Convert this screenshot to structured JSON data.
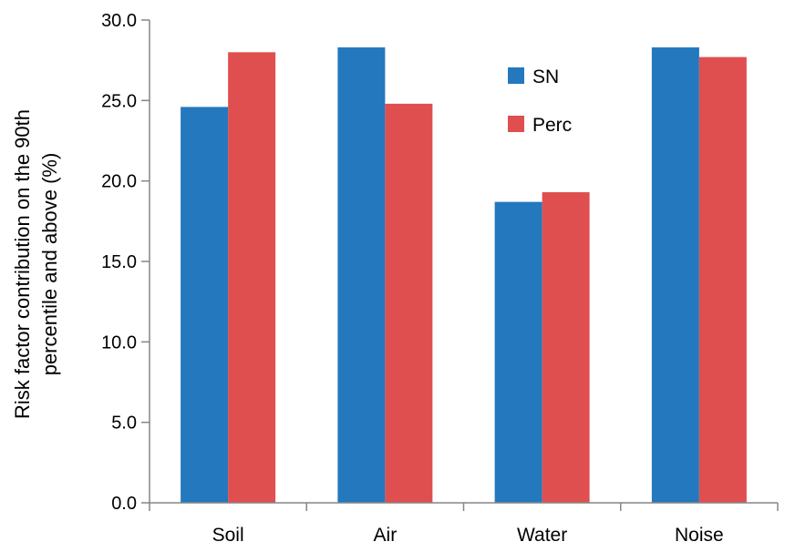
{
  "chart_data": {
    "type": "bar",
    "categories": [
      "Soil",
      "Air",
      "Water",
      "Noise"
    ],
    "series": [
      {
        "name": "SN",
        "values": [
          24.6,
          28.3,
          18.7,
          28.3
        ],
        "color": "#2378BE"
      },
      {
        "name": "Perc",
        "values": [
          28.0,
          24.8,
          19.3,
          27.7
        ],
        "color": "#E04F4F"
      }
    ],
    "title": "",
    "xlabel": "",
    "ylabel": "Risk factor contribution on the 90th percentile and above (%)",
    "ylabel_lines": [
      "Risk factor contribution on the 90th",
      "percentile and above (%)"
    ],
    "ylim": [
      0,
      30
    ],
    "yticks": [
      "0.0",
      "5.0",
      "10.0",
      "15.0",
      "20.0",
      "25.0",
      "30.0"
    ],
    "grid": false,
    "legend": "inside top-center"
  }
}
